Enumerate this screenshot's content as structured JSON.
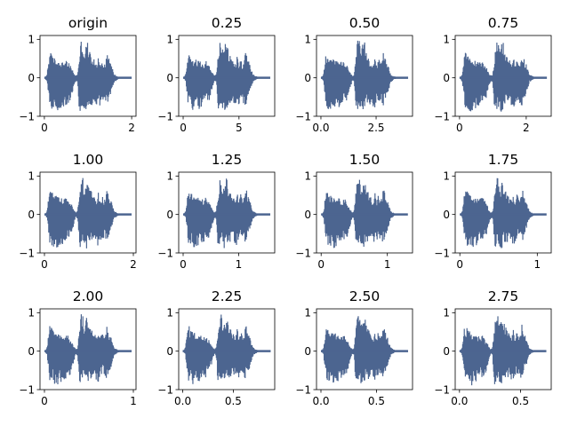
{
  "chart_data": {
    "type": "line",
    "layout": {
      "rows": 3,
      "cols": 4
    },
    "line_color": "#4c6590",
    "envelope": {
      "description_free_note": "",
      "x_fraction": [
        0,
        0.01,
        0.03,
        0.06,
        0.1,
        0.14,
        0.18,
        0.22,
        0.26,
        0.3,
        0.34,
        0.36,
        0.38,
        0.4,
        0.42,
        0.44,
        0.46,
        0.48,
        0.5,
        0.52,
        0.54,
        0.56,
        0.58,
        0.6,
        0.62,
        0.64,
        0.66,
        0.68,
        0.7,
        0.72,
        0.74,
        0.76,
        0.78,
        0.8,
        0.83,
        0.86,
        0.9,
        1.0
      ],
      "upper": [
        0.0,
        0.02,
        0.1,
        0.7,
        0.55,
        0.48,
        0.45,
        0.4,
        0.45,
        0.32,
        0.12,
        0.05,
        0.1,
        0.55,
        0.98,
        0.97,
        0.62,
        0.9,
        0.95,
        0.68,
        0.6,
        0.5,
        0.45,
        0.35,
        0.62,
        0.3,
        0.55,
        0.35,
        0.45,
        0.72,
        0.5,
        0.4,
        0.25,
        0.1,
        0.05,
        0.02,
        0.01,
        0.0
      ],
      "lower": [
        0.0,
        -0.02,
        -0.1,
        -0.75,
        -0.85,
        -0.9,
        -0.82,
        -0.75,
        -0.7,
        -0.6,
        -0.25,
        -0.08,
        -0.12,
        -0.85,
        -0.88,
        -0.75,
        -0.85,
        -0.9,
        -0.8,
        -0.72,
        -0.75,
        -0.7,
        -0.65,
        -0.78,
        -0.82,
        -0.7,
        -0.6,
        -0.65,
        -0.7,
        -0.72,
        -0.55,
        -0.45,
        -0.3,
        -0.12,
        -0.06,
        -0.02,
        -0.01,
        0.0
      ]
    },
    "subplots": [
      {
        "title": "origin",
        "duration": 2.0,
        "xlim": [
          -0.1,
          2.1
        ],
        "ylim": [
          -1,
          1.1
        ],
        "xticks": [
          0,
          2
        ],
        "xtick_labels": [
          "0",
          "2"
        ],
        "yticks": [
          -1,
          0,
          1
        ],
        "ytick_labels": [
          "−1",
          "0",
          "1"
        ]
      },
      {
        "title": "0.25",
        "duration": 7.8,
        "xlim": [
          -0.4,
          8.2
        ],
        "ylim": [
          -1,
          1.1
        ],
        "xticks": [
          0,
          5
        ],
        "xtick_labels": [
          "0",
          "5"
        ],
        "yticks": [
          -1,
          0,
          1
        ],
        "ytick_labels": [
          "−1",
          "0",
          "1"
        ]
      },
      {
        "title": "0.50",
        "duration": 3.95,
        "xlim": [
          -0.2,
          4.15
        ],
        "ylim": [
          -1,
          1.1
        ],
        "xticks": [
          0,
          2.5
        ],
        "xtick_labels": [
          "0.0",
          "2.5"
        ],
        "yticks": [
          -1,
          0,
          1
        ],
        "ytick_labels": [
          "−1",
          "0",
          "1"
        ]
      },
      {
        "title": "0.75",
        "duration": 2.62,
        "xlim": [
          -0.13,
          2.75
        ],
        "ylim": [
          -1,
          1.1
        ],
        "xticks": [
          0,
          2
        ],
        "xtick_labels": [
          "0",
          "2"
        ],
        "yticks": [
          -1,
          0,
          1
        ],
        "ytick_labels": [
          "−1",
          "0",
          "1"
        ]
      },
      {
        "title": "1.00",
        "duration": 1.96,
        "xlim": [
          -0.1,
          2.06
        ],
        "ylim": [
          -1,
          1.1
        ],
        "xticks": [
          0,
          2
        ],
        "xtick_labels": [
          "0",
          "2"
        ],
        "yticks": [
          -1,
          0,
          1
        ],
        "ytick_labels": [
          "−1",
          "0",
          "1"
        ]
      },
      {
        "title": "1.25",
        "duration": 1.57,
        "xlim": [
          -0.08,
          1.65
        ],
        "ylim": [
          -1,
          1.1
        ],
        "xticks": [
          0,
          1
        ],
        "xtick_labels": [
          "0",
          "1"
        ],
        "yticks": [
          -1,
          0,
          1
        ],
        "ytick_labels": [
          "−1",
          "0",
          "1"
        ]
      },
      {
        "title": "1.50",
        "duration": 1.31,
        "xlim": [
          -0.07,
          1.38
        ],
        "ylim": [
          -1,
          1.1
        ],
        "xticks": [
          0,
          1
        ],
        "xtick_labels": [
          "0",
          "1"
        ],
        "yticks": [
          -1,
          0,
          1
        ],
        "ytick_labels": [
          "−1",
          "0",
          "1"
        ]
      },
      {
        "title": "1.75",
        "duration": 1.12,
        "xlim": [
          -0.06,
          1.18
        ],
        "ylim": [
          -1,
          1.1
        ],
        "xticks": [
          0,
          1
        ],
        "xtick_labels": [
          "0",
          "1"
        ],
        "yticks": [
          -1,
          0,
          1
        ],
        "ytick_labels": [
          "−1",
          "0",
          "1"
        ]
      },
      {
        "title": "2.00",
        "duration": 0.98,
        "xlim": [
          -0.05,
          1.03
        ],
        "ylim": [
          -1,
          1.1
        ],
        "xticks": [
          0,
          1
        ],
        "xtick_labels": [
          "0",
          "1"
        ],
        "yticks": [
          -1,
          0,
          1
        ],
        "ytick_labels": [
          "−1",
          "0",
          "1"
        ]
      },
      {
        "title": "2.25",
        "duration": 0.87,
        "xlim": [
          -0.04,
          0.91
        ],
        "ylim": [
          -1,
          1.1
        ],
        "xticks": [
          0,
          0.5
        ],
        "xtick_labels": [
          "0.0",
          "0.5"
        ],
        "yticks": [
          -1,
          0,
          1
        ],
        "ytick_labels": [
          "−1",
          "0",
          "1"
        ]
      },
      {
        "title": "2.50",
        "duration": 0.785,
        "xlim": [
          -0.04,
          0.825
        ],
        "ylim": [
          -1,
          1.1
        ],
        "xticks": [
          0,
          0.5
        ],
        "xtick_labels": [
          "0.0",
          "0.5"
        ],
        "yticks": [
          -1,
          0,
          1
        ],
        "ytick_labels": [
          "−1",
          "0",
          "1"
        ]
      },
      {
        "title": "2.75",
        "duration": 0.71,
        "xlim": [
          -0.035,
          0.75
        ],
        "ylim": [
          -1,
          1.1
        ],
        "xticks": [
          0,
          0.5
        ],
        "xtick_labels": [
          "0.0",
          "0.5"
        ],
        "yticks": [
          -1,
          0,
          1
        ],
        "ytick_labels": [
          "−1",
          "0",
          "1"
        ]
      }
    ]
  }
}
